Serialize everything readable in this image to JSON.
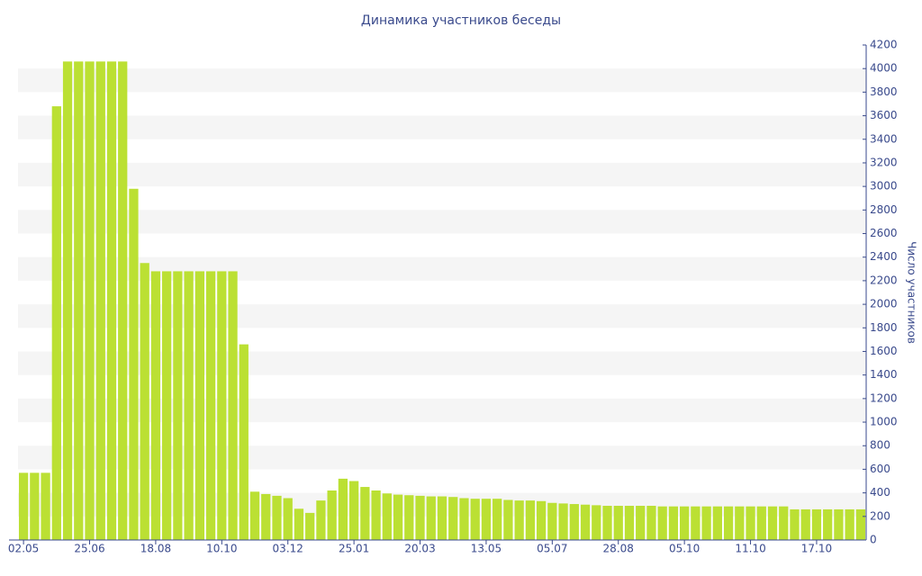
{
  "chart_data": {
    "type": "bar",
    "title": "Динамика участников беседы",
    "y_label": "Число участников",
    "categories": [
      "02.05",
      null,
      null,
      null,
      null,
      null,
      "25.06",
      null,
      null,
      null,
      null,
      null,
      "18.08",
      null,
      null,
      null,
      null,
      null,
      "10.10",
      null,
      null,
      null,
      null,
      null,
      "03.12",
      null,
      null,
      null,
      null,
      null,
      "25.01",
      null,
      null,
      null,
      null,
      null,
      "20.03",
      null,
      null,
      null,
      null,
      null,
      "13.05",
      null,
      null,
      null,
      null,
      null,
      "05.07",
      null,
      null,
      null,
      null,
      null,
      "28.08",
      null,
      null,
      null,
      null,
      null,
      "05.10",
      null,
      null,
      null,
      null,
      null,
      "11.10",
      null,
      null,
      null,
      null,
      null,
      "17.10",
      null,
      null,
      null,
      null
    ],
    "values": [
      570,
      570,
      570,
      3680,
      4060,
      4060,
      4060,
      4060,
      4060,
      4060,
      2980,
      2350,
      2280,
      2280,
      2280,
      2280,
      2280,
      2280,
      2280,
      2280,
      1660,
      410,
      390,
      375,
      355,
      265,
      230,
      335,
      420,
      520,
      500,
      450,
      420,
      395,
      385,
      380,
      375,
      370,
      370,
      365,
      355,
      350,
      350,
      350,
      340,
      335,
      335,
      330,
      315,
      310,
      305,
      300,
      295,
      290,
      290,
      290,
      290,
      290,
      285,
      285,
      285,
      285,
      285,
      285,
      285,
      285,
      285,
      285,
      285,
      285,
      260,
      260,
      260,
      260,
      260,
      260,
      260
    ],
    "color": "#bbe033",
    "ylim": [
      0,
      4200
    ],
    "yticks": [
      0,
      200,
      400,
      600,
      800,
      1000,
      1200,
      1400,
      1600,
      1800,
      2000,
      2200,
      2400,
      2600,
      2800,
      3000,
      3200,
      3400,
      3600,
      3800,
      4000,
      4200
    ],
    "grid": true,
    "y_axis_side": "right"
  }
}
